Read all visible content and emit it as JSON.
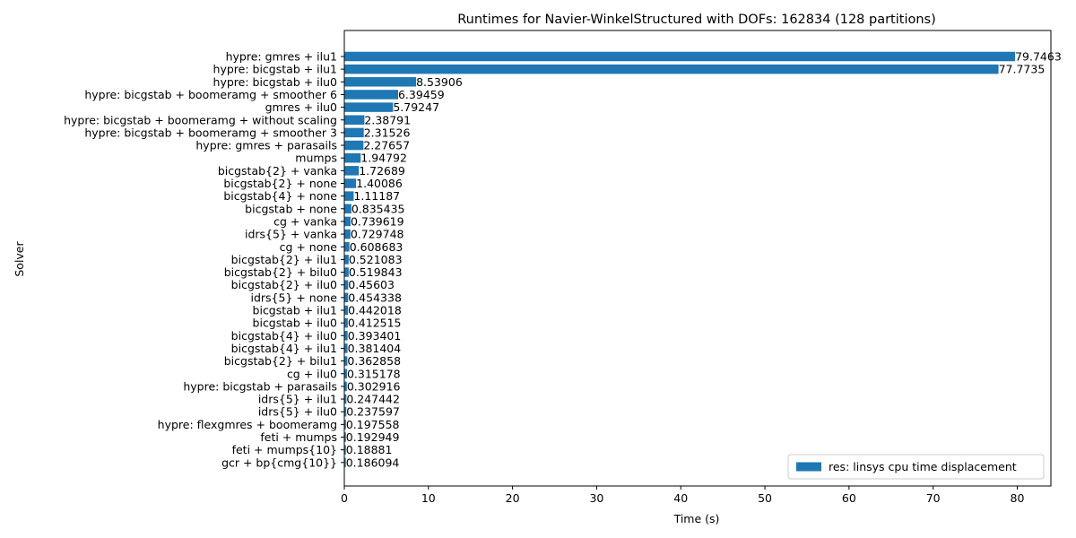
{
  "chart_data": {
    "type": "bar",
    "orientation": "horizontal",
    "title": "Runtimes for Navier-WinkelStructured with DOFs: 162834 (128 partitions)",
    "xlabel": "Time (s)",
    "ylabel": "Solver",
    "xlim": [
      0,
      84
    ],
    "xticks": [
      0,
      10,
      20,
      30,
      40,
      50,
      60,
      70,
      80
    ],
    "legend_position": "lower-right",
    "bar_color": "#1f77b4",
    "categories": [
      "hypre: gmres + ilu1",
      "hypre: bicgstab + ilu1",
      "hypre: bicgstab + ilu0",
      "hypre: bicgstab + boomeramg + smoother 6",
      "gmres + ilu0",
      "hypre: bicgstab + boomeramg + without scaling",
      "hypre: bicgstab + boomeramg + smoother 3",
      "hypre: gmres + parasails",
      "mumps",
      "bicgstab{2} + vanka",
      "bicgstab{2} + none",
      "bicgstab{4} + none",
      "bicgstab + none",
      "cg + vanka",
      "idrs{5} + vanka",
      "cg + none",
      "bicgstab{2} + ilu1",
      "bicgstab{2} + bilu0",
      "bicgstab{2} + ilu0",
      "idrs{5} + none",
      "bicgstab + ilu1",
      "bicgstab + ilu0",
      "bicgstab{4} + ilu0",
      "bicgstab{4} + ilu1",
      "bicgstab{2} + bilu1",
      "cg + ilu0",
      "hypre: bicgstab + parasails",
      "idrs{5} + ilu1",
      "idrs{5} + ilu0",
      "hypre: flexgmres + boomeramg",
      "feti + mumps",
      "feti + mumps{10}",
      "gcr + bp{cmg{10}}"
    ],
    "series": [
      {
        "name": "res: linsys cpu time displacement",
        "values": [
          79.7463,
          77.7735,
          8.53906,
          6.39459,
          5.79247,
          2.38791,
          2.31526,
          2.27657,
          1.94792,
          1.72689,
          1.40086,
          1.11187,
          0.835435,
          0.739619,
          0.729748,
          0.608683,
          0.521083,
          0.519843,
          0.45603,
          0.454338,
          0.442018,
          0.412515,
          0.393401,
          0.381404,
          0.362858,
          0.315178,
          0.302916,
          0.247442,
          0.237597,
          0.197558,
          0.192949,
          0.18881,
          0.186094
        ],
        "value_labels": [
          "79.7463",
          "77.7735",
          "8.53906",
          "6.39459",
          "5.79247",
          "2.38791",
          "2.31526",
          "2.27657",
          "1.94792",
          "1.72689",
          "1.40086",
          "1.11187",
          "0.835435",
          "0.739619",
          "0.729748",
          "0.608683",
          "0.521083",
          "0.519843",
          "0.45603",
          "0.454338",
          "0.442018",
          "0.412515",
          "0.393401",
          "0.381404",
          "0.362858",
          "0.315178",
          "0.302916",
          "0.247442",
          "0.237597",
          "0.197558",
          "0.192949",
          "0.18881",
          "0.186094"
        ]
      }
    ]
  }
}
